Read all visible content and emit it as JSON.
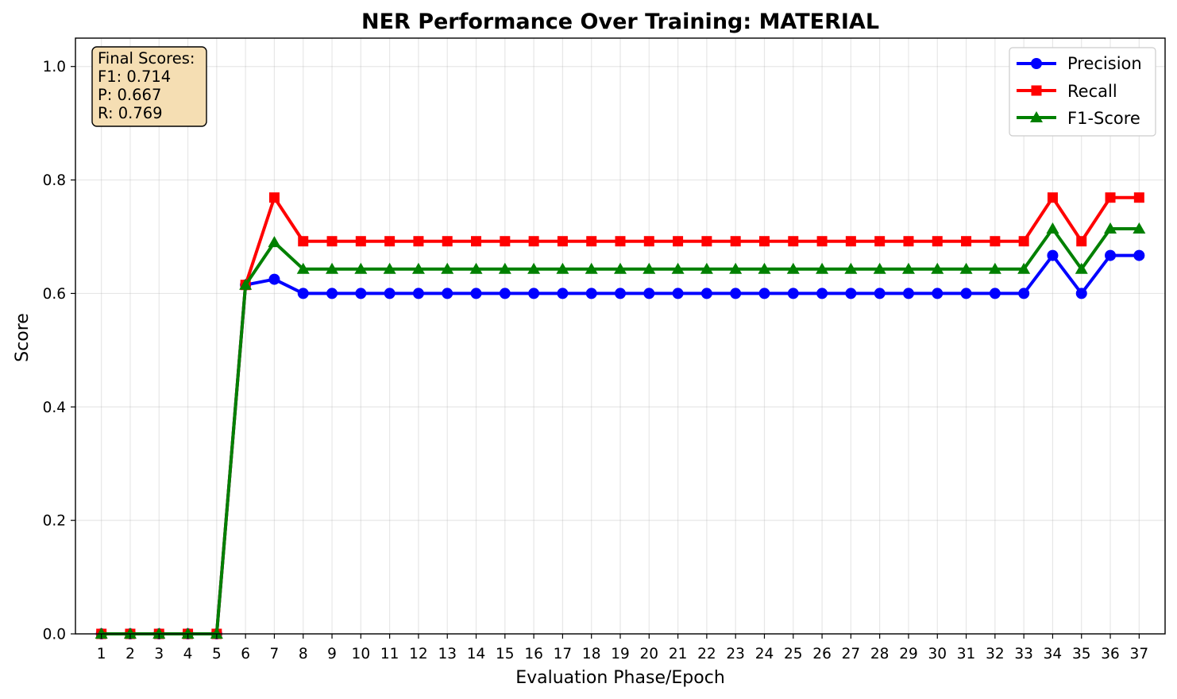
{
  "chart_data": {
    "type": "line",
    "title": "NER Performance Over Training: MATERIAL",
    "xlabel": "Evaluation Phase/Epoch",
    "ylabel": "Score",
    "x": [
      1,
      2,
      3,
      4,
      5,
      6,
      7,
      8,
      9,
      10,
      11,
      12,
      13,
      14,
      15,
      16,
      17,
      18,
      19,
      20,
      21,
      22,
      23,
      24,
      25,
      26,
      27,
      28,
      29,
      30,
      31,
      32,
      33,
      34,
      35,
      36,
      37
    ],
    "xlim": [
      0.1,
      37.9
    ],
    "ylim": [
      0,
      1.05
    ],
    "yticks": [
      0.0,
      0.2,
      0.4,
      0.6,
      0.8,
      1.0
    ],
    "ytick_labels": [
      "0.0",
      "0.2",
      "0.4",
      "0.6",
      "0.8",
      "1.0"
    ],
    "grid": true,
    "legend_position": "top-right",
    "series": [
      {
        "name": "Precision",
        "color": "#0000ff",
        "marker": "circle",
        "values": [
          0,
          0,
          0,
          0,
          0,
          0.615,
          0.625,
          0.6,
          0.6,
          0.6,
          0.6,
          0.6,
          0.6,
          0.6,
          0.6,
          0.6,
          0.6,
          0.6,
          0.6,
          0.6,
          0.6,
          0.6,
          0.6,
          0.6,
          0.6,
          0.6,
          0.6,
          0.6,
          0.6,
          0.6,
          0.6,
          0.6,
          0.6,
          0.667,
          0.6,
          0.667,
          0.667
        ]
      },
      {
        "name": "Recall",
        "color": "#ff0000",
        "marker": "square",
        "values": [
          0,
          0,
          0,
          0,
          0,
          0.615,
          0.769,
          0.692,
          0.692,
          0.692,
          0.692,
          0.692,
          0.692,
          0.692,
          0.692,
          0.692,
          0.692,
          0.692,
          0.692,
          0.692,
          0.692,
          0.692,
          0.692,
          0.692,
          0.692,
          0.692,
          0.692,
          0.692,
          0.692,
          0.692,
          0.692,
          0.692,
          0.692,
          0.769,
          0.692,
          0.769,
          0.769
        ]
      },
      {
        "name": "F1-Score",
        "color": "#008000",
        "marker": "triangle",
        "values": [
          0,
          0,
          0,
          0,
          0,
          0.615,
          0.69,
          0.643,
          0.643,
          0.643,
          0.643,
          0.643,
          0.643,
          0.643,
          0.643,
          0.643,
          0.643,
          0.643,
          0.643,
          0.643,
          0.643,
          0.643,
          0.643,
          0.643,
          0.643,
          0.643,
          0.643,
          0.643,
          0.643,
          0.643,
          0.643,
          0.643,
          0.643,
          0.714,
          0.643,
          0.714,
          0.714
        ]
      }
    ],
    "annotation": {
      "lines": [
        "Final Scores:",
        "F1: 0.714",
        "P: 0.667",
        "R: 0.769"
      ],
      "box_color": "#f5deb3",
      "position": "top-left"
    }
  }
}
